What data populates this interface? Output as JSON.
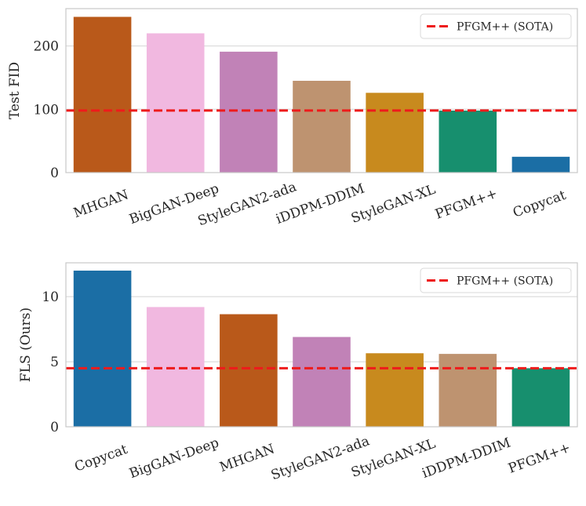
{
  "chart_data": [
    {
      "type": "bar",
      "title": "",
      "xlabel": "",
      "ylabel": "Test FID",
      "ylim": [
        0,
        259
      ],
      "yticks": [
        0,
        100,
        200
      ],
      "categories": [
        "MHGAN",
        "BigGAN-Deep",
        "StyleGAN2-ada",
        "iDDPM-DDIM",
        "StyleGAN-XL",
        "PFGM++",
        "Copycat"
      ],
      "values": [
        246,
        220,
        191,
        145,
        126,
        98,
        25
      ],
      "bar_colors": [
        "#b9591a",
        "#f1b8e0",
        "#c182b7",
        "#be9370",
        "#c88a1e",
        "#178f6e",
        "#1b6ea5"
      ],
      "reference_line": {
        "label": "PFGM++ (SOTA)",
        "value": 98,
        "color": "#ee1b1b"
      },
      "legend_position": "top-right",
      "grid": "y"
    },
    {
      "type": "bar",
      "title": "",
      "xlabel": "",
      "ylabel": "FLS (Ours)",
      "ylim": [
        0,
        12.6
      ],
      "yticks": [
        0,
        5,
        10
      ],
      "categories": [
        "Copycat",
        "BigGAN-Deep",
        "MHGAN",
        "StyleGAN2-ada",
        "StyleGAN-XL",
        "iDDPM-DDIM",
        "PFGM++"
      ],
      "values": [
        12.0,
        9.2,
        8.65,
        6.9,
        5.65,
        5.6,
        4.5
      ],
      "bar_colors": [
        "#1b6ea5",
        "#f1b8e0",
        "#b9591a",
        "#c182b7",
        "#c88a1e",
        "#be9370",
        "#178f6e"
      ],
      "reference_line": {
        "label": "PFGM++ (SOTA)",
        "value": 4.5,
        "color": "#ee1b1b"
      },
      "legend_position": "top-right",
      "grid": "y"
    }
  ]
}
